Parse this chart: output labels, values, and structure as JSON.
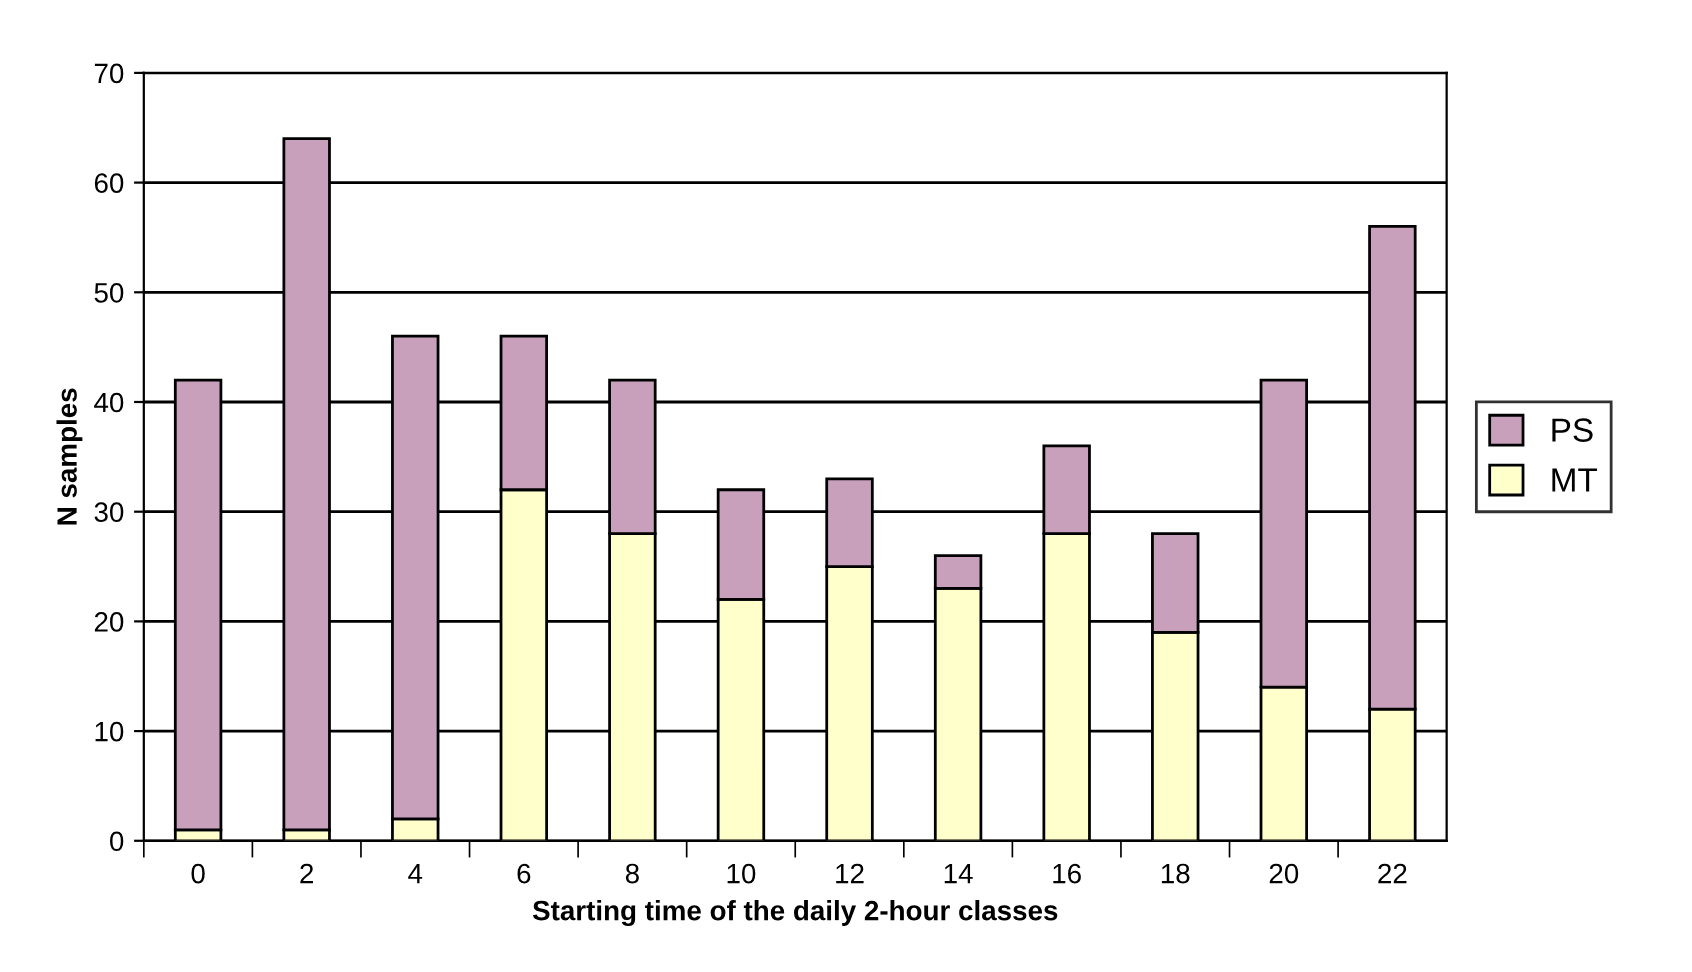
{
  "chart_data": {
    "type": "bar",
    "stacked": true,
    "xlabel": "Starting time of the daily 2-hour classes",
    "ylabel": "N samples",
    "categories": [
      "0",
      "2",
      "4",
      "6",
      "8",
      "10",
      "12",
      "14",
      "16",
      "18",
      "20",
      "22"
    ],
    "series": [
      {
        "name": "MT",
        "color": "#ffffcc",
        "values": [
          1,
          1,
          2,
          32,
          28,
          22,
          25,
          23,
          28,
          19,
          14,
          12
        ]
      },
      {
        "name": "PS",
        "color": "#c8a0bc",
        "values": [
          41,
          63,
          44,
          14,
          14,
          10,
          8,
          3,
          8,
          9,
          28,
          44
        ]
      }
    ],
    "ylim": [
      0,
      70
    ],
    "yticks": [
      0,
      10,
      20,
      30,
      40,
      50,
      60,
      70
    ],
    "grid": "y",
    "legend": "right"
  }
}
